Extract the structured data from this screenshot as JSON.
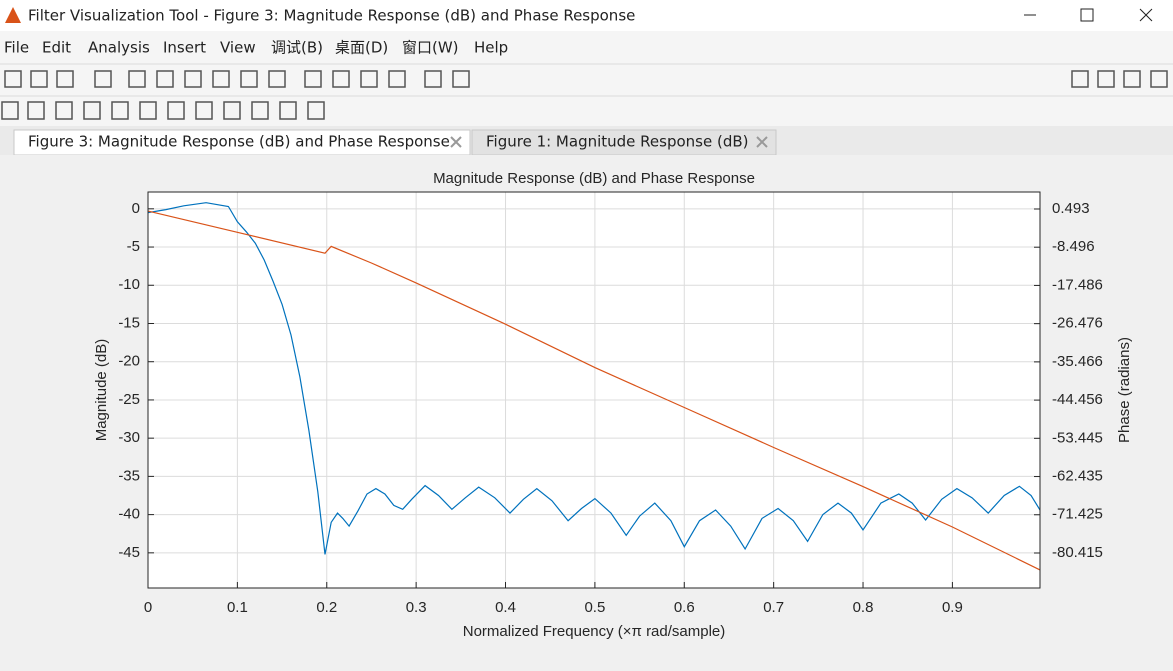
{
  "window": {
    "title": "Filter Visualization Tool - Figure 3: Magnitude Response (dB) and Phase Response"
  },
  "menu": [
    "File",
    "Edit",
    "Analysis",
    "Insert",
    "View",
    "调试(B)",
    "桌面(D)",
    "窗口(W)",
    "Help"
  ],
  "tabs": [
    "Figure 3: Magnitude Response (dB) and Phase Response",
    "Figure 1: Magnitude Response (dB)"
  ],
  "chart_data": {
    "type": "line",
    "title": "Magnitude Response (dB) and Phase Response",
    "xlabel": "Normalized Frequency (×π rad/sample)",
    "ylabel": "Magnitude (dB)",
    "y2label": "Phase (radians)",
    "xlim": [
      0,
      0.998
    ],
    "xticks": [
      0,
      0.1,
      0.2,
      0.3,
      0.4,
      0.5,
      0.6,
      0.7,
      0.8,
      0.9
    ],
    "ylim": [
      -49.6,
      2.2
    ],
    "yticks": [
      0,
      -5,
      -10,
      -15,
      -20,
      -25,
      -30,
      -35,
      -40,
      -45
    ],
    "y2lim": [
      -88.65,
      4.49
    ],
    "y2ticks": [
      0.493,
      -8.496,
      -17.486,
      -26.476,
      -35.466,
      -44.456,
      -53.445,
      -62.435,
      -71.425,
      -80.415
    ],
    "grid": true,
    "series": [
      {
        "name": "Magnitude",
        "color": "#0072bd",
        "x": [
          0,
          0.02,
          0.04,
          0.065,
          0.09,
          0.1,
          0.11,
          0.12,
          0.13,
          0.14,
          0.15,
          0.16,
          0.17,
          0.18,
          0.19,
          0.198,
          0.205,
          0.212,
          0.218,
          0.225,
          0.235,
          0.245,
          0.255,
          0.265,
          0.275,
          0.285,
          0.295,
          0.31,
          0.325,
          0.34,
          0.355,
          0.37,
          0.388,
          0.405,
          0.42,
          0.435,
          0.452,
          0.47,
          0.485,
          0.5,
          0.518,
          0.535,
          0.55,
          0.567,
          0.585,
          0.6,
          0.617,
          0.635,
          0.652,
          0.668,
          0.687,
          0.705,
          0.722,
          0.738,
          0.755,
          0.772,
          0.787,
          0.8,
          0.82,
          0.84,
          0.855,
          0.87,
          0.888,
          0.905,
          0.922,
          0.94,
          0.958,
          0.975,
          0.988,
          0.998
        ],
        "values": [
          -0.5,
          -0.1,
          0.4,
          0.8,
          0.3,
          -1.7,
          -3.0,
          -4.5,
          -6.7,
          -9.5,
          -12.5,
          -16.5,
          -22,
          -29,
          -37,
          -45.2,
          -41,
          -39.8,
          -40.5,
          -41.5,
          -39.5,
          -37.3,
          -36.6,
          -37.3,
          -38.8,
          -39.3,
          -38,
          -36.2,
          -37.5,
          -39.3,
          -37.8,
          -36.4,
          -37.8,
          -39.8,
          -38,
          -36.6,
          -38.2,
          -40.8,
          -39.2,
          -37.9,
          -39.8,
          -42.7,
          -40.2,
          -38.5,
          -40.8,
          -44.2,
          -40.8,
          -39.4,
          -41.5,
          -44.5,
          -40.5,
          -39.2,
          -40.8,
          -43.5,
          -40,
          -38.5,
          -39.8,
          -42,
          -38.5,
          -37.3,
          -38.5,
          -40.7,
          -38,
          -36.6,
          -37.8,
          -39.8,
          -37.5,
          -36.3,
          -37.5,
          -39.4
        ]
      },
      {
        "name": "Phase",
        "color": "#d95319",
        "axis": "y2",
        "x": [
          0,
          0.1,
          0.198,
          0.205,
          0.25,
          0.3,
          0.4,
          0.5,
          0.6,
          0.7,
          0.8,
          0.9,
          0.998
        ],
        "values": [
          0.0,
          -5.0,
          -9.9,
          -8.3,
          -12.2,
          -16.9,
          -26.6,
          -36.8,
          -46.2,
          -55.6,
          -64.8,
          -74.3,
          -84.4
        ]
      }
    ]
  }
}
